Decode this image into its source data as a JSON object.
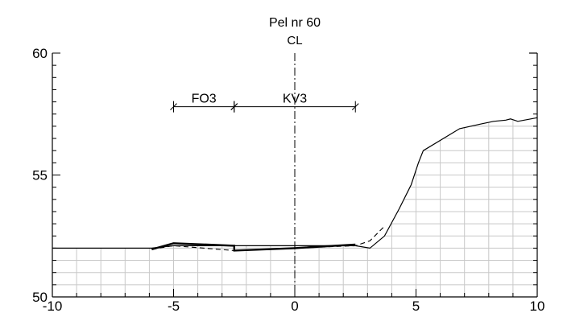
{
  "chart_data": {
    "type": "line",
    "title": "Pel nr 60",
    "centerline_label": "CL",
    "xlim": [
      -10,
      10
    ],
    "ylim": [
      50,
      60
    ],
    "x_ticks": [
      -10,
      -5,
      0,
      5,
      10
    ],
    "x_tick_labels": [
      "-10",
      "-5",
      "0",
      "5",
      "10"
    ],
    "y_ticks": [
      50,
      55,
      60
    ],
    "y_tick_labels": [
      "50",
      "55",
      "60"
    ],
    "grid": "below-ground",
    "grid_x_step": 1,
    "grid_y_step": 0.5,
    "centerline_x": 0,
    "dimension_y": 57.8,
    "dimensions": [
      {
        "label": "FO3",
        "x1": -5.0,
        "x2": -2.5
      },
      {
        "label": "KV3",
        "x1": -2.5,
        "x2": 2.5
      }
    ],
    "series": [
      {
        "style": "thin-solid",
        "x": [
          -10,
          -5.9,
          -5.0,
          -2.5,
          0,
          2.5,
          3.1,
          3.7,
          4.3,
          4.8,
          5.1,
          5.3,
          6.8,
          7.7,
          8.2,
          8.7,
          8.9,
          9.2,
          10.0
        ],
        "y": [
          52.0,
          52.0,
          52.1,
          52.1,
          52.1,
          52.1,
          52.0,
          52.5,
          53.6,
          54.6,
          55.5,
          56.0,
          56.9,
          57.1,
          57.2,
          57.25,
          57.3,
          57.2,
          57.35
        ]
      },
      {
        "style": "thick-solid",
        "x": [
          -5.9,
          -5.0,
          -2.5,
          -2.5,
          0,
          2.5
        ],
        "y": [
          51.95,
          52.2,
          52.1,
          51.9,
          52.0,
          52.15
        ]
      },
      {
        "style": "dashed",
        "x": [
          -5.9,
          -5.0,
          -2.5,
          0,
          2.5,
          3.1,
          3.7
        ],
        "y": [
          51.95,
          52.1,
          51.9,
          52.0,
          52.1,
          52.3,
          52.9
        ]
      }
    ]
  }
}
